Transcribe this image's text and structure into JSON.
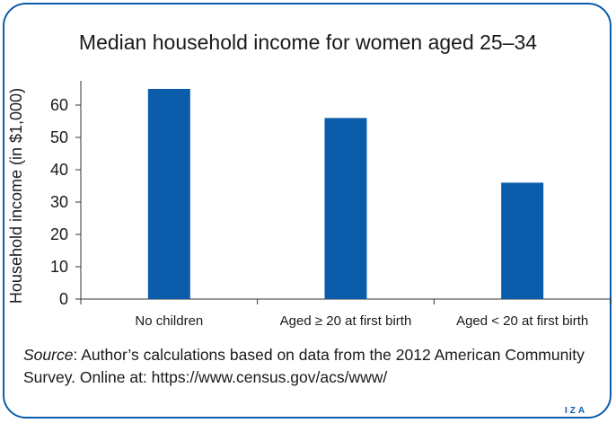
{
  "chart_data": {
    "type": "bar",
    "title": "Median household income for women aged 25–34",
    "ylabel": "Household income (in $1,000)",
    "xlabel": "",
    "categories": [
      "No children",
      "Aged ≥ 20 at first birth",
      "Aged < 20 at first birth"
    ],
    "values": [
      65,
      56,
      36
    ],
    "ylim": [
      0,
      65
    ],
    "yticks": [
      0,
      10,
      20,
      30,
      40,
      50,
      60
    ],
    "bar_color": "#0b5cab",
    "grid": false
  },
  "source": {
    "label": "Source",
    "text": ": Author’s calculations based on data from the 2012 American Community Survey. Online at: https://www.census.gov/acs/www/"
  },
  "logo": {
    "text": "IZA"
  }
}
